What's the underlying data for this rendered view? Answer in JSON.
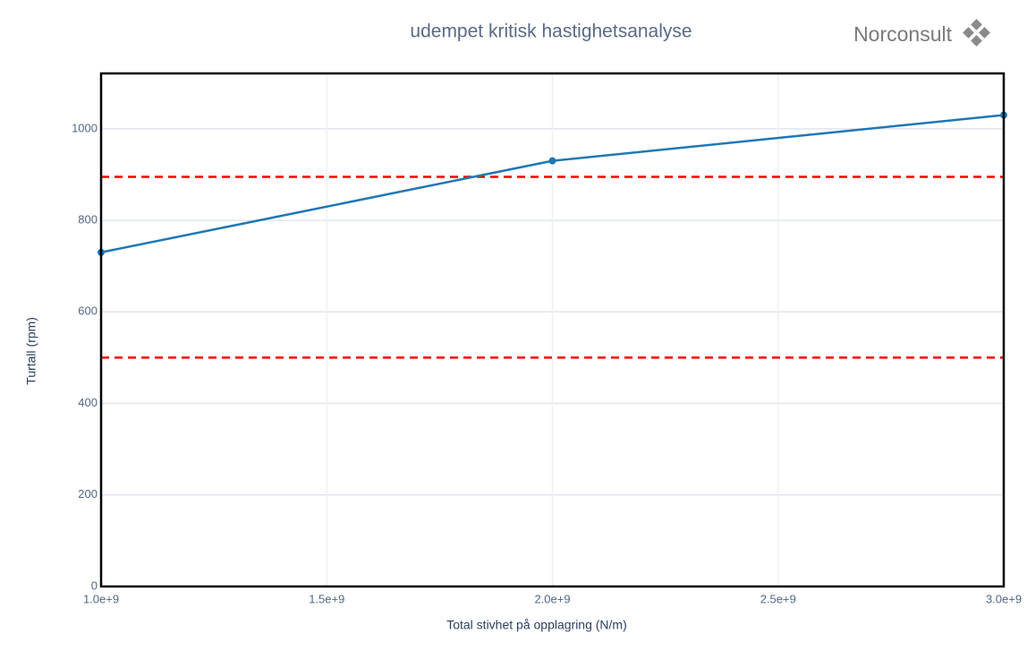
{
  "chart_data": {
    "type": "line",
    "title": "udempet kritisk hastighetsanalyse",
    "logo": "Norconsult",
    "x_label": "Total stivhet på opplagring (N/m)",
    "y_label": "Turtall (rpm)",
    "x": [
      1000000000,
      2000000000,
      3000000000
    ],
    "series": [
      {
        "color": "#1f77b4",
        "values": [
          730,
          930,
          1030
        ]
      }
    ],
    "reference_lines": {
      "color": "#ff0000",
      "values": [
        895,
        500
      ]
    },
    "xlim": [
      1000000000,
      3000000000
    ],
    "xticks": [
      {
        "value": 1000000000,
        "label": "1.0e+9"
      },
      {
        "value": 1500000000,
        "label": "1.5e+9"
      },
      {
        "value": 2000000000,
        "label": "2.0e+9"
      },
      {
        "value": 2500000000,
        "label": "2.5e+9"
      },
      {
        "value": 3000000000,
        "label": "3.0e+9"
      }
    ],
    "ylim": [
      0,
      1121
    ],
    "yticks": [
      0,
      200,
      400,
      600,
      800,
      1000
    ],
    "grid": true
  }
}
